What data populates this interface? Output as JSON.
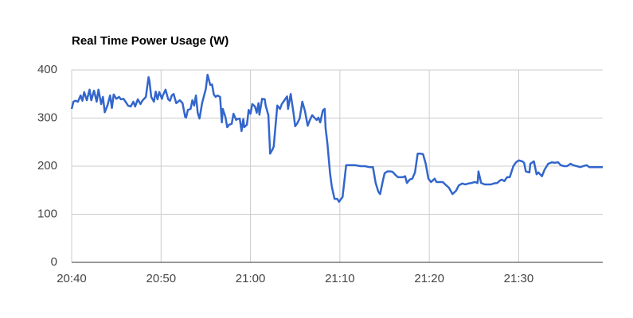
{
  "chart_data": {
    "type": "line",
    "title": "Real Time Power Usage (W)",
    "x": [
      1240,
      1240.2,
      1240.4,
      1240.7,
      1241,
      1241.2,
      1241.4,
      1241.7,
      1242,
      1242.2,
      1242.5,
      1242.8,
      1243,
      1243.3,
      1243.5,
      1243.7,
      1244,
      1244.3,
      1244.5,
      1244.7,
      1245,
      1245.3,
      1245.5,
      1245.8,
      1246.1,
      1246.3,
      1246.6,
      1246.9,
      1247.1,
      1247.4,
      1247.7,
      1247.9,
      1248.3,
      1248.6,
      1248.7,
      1248.9,
      1249.2,
      1249.4,
      1249.6,
      1249.8,
      1250.1,
      1250.2,
      1250.5,
      1250.8,
      1251,
      1251.2,
      1251.4,
      1251.7,
      1251.9,
      1252.1,
      1252.4,
      1252.7,
      1252.8,
      1253,
      1253.3,
      1253.5,
      1253.7,
      1253.9,
      1254.1,
      1254.3,
      1254.6,
      1255,
      1255.2,
      1255.5,
      1255.7,
      1255.9,
      1256.1,
      1256.3,
      1256.6,
      1256.8,
      1256.9,
      1257.2,
      1257.4,
      1257.6,
      1257.9,
      1258.1,
      1258.4,
      1258.5,
      1258.8,
      1259,
      1259.2,
      1259.3,
      1259.6,
      1259.8,
      1260,
      1260.2,
      1260.5,
      1260.7,
      1260.9,
      1261,
      1261.3,
      1261.6,
      1261.7,
      1262,
      1262.2,
      1262.5,
      1262.6,
      1263,
      1263.3,
      1263.5,
      1263.8,
      1264.1,
      1264.2,
      1264.5,
      1264.8,
      1265,
      1265.2,
      1265.5,
      1265.8,
      1266.1,
      1266.4,
      1266.6,
      1266.9,
      1267.1,
      1267.4,
      1267.6,
      1267.8,
      1268.1,
      1268.3,
      1268.4,
      1268.6,
      1268.9,
      1269.1,
      1269.4,
      1269.7,
      1269.9,
      1270.3,
      1270.7,
      1271.2,
      1271.7,
      1272.3,
      1272.8,
      1273.3,
      1273.7,
      1274,
      1274.3,
      1274.5,
      1274.8,
      1275,
      1275.3,
      1275.7,
      1275.9,
      1276.2,
      1276.5,
      1276.7,
      1277,
      1277.3,
      1277.5,
      1277.8,
      1278.1,
      1278.4,
      1278.7,
      1279,
      1279.3,
      1279.6,
      1279.9,
      1280.2,
      1280.6,
      1280.8,
      1281.2,
      1281.5,
      1281.9,
      1282.2,
      1282.6,
      1283,
      1283.3,
      1283.7,
      1284,
      1284.4,
      1284.7,
      1285.1,
      1285.4,
      1285.5,
      1285.8,
      1286.2,
      1286.5,
      1286.9,
      1287.2,
      1287.6,
      1287.9,
      1288.1,
      1288.4,
      1288.7,
      1289,
      1289.4,
      1289.7,
      1290,
      1290.4,
      1290.6,
      1290.8,
      1291.2,
      1291.3,
      1291.7,
      1292,
      1292.2,
      1292.6,
      1292.9,
      1293.3,
      1293.7,
      1294,
      1294.4,
      1294.7,
      1295.1,
      1295.4,
      1295.8,
      1296.1,
      1296.5,
      1296.9,
      1297.2,
      1297.6,
      1297.9,
      1298.3,
      1298.6,
      1299,
      1299.4
    ],
    "series": [
      {
        "color": "#3366cc",
        "values": [
          319,
          334,
          336,
          334,
          347,
          336,
          354,
          337,
          359,
          337,
          357,
          334,
          359,
          329,
          344,
          312,
          326,
          347,
          321,
          349,
          340,
          344,
          339,
          340,
          332,
          326,
          324,
          334,
          324,
          339,
          329,
          336,
          344,
          385,
          377,
          344,
          334,
          355,
          339,
          354,
          340,
          347,
          359,
          339,
          336,
          347,
          350,
          331,
          334,
          337,
          331,
          302,
          301,
          317,
          319,
          337,
          326,
          347,
          311,
          299,
          332,
          360,
          390,
          369,
          370,
          349,
          344,
          347,
          344,
          291,
          319,
          302,
          281,
          286,
          288,
          309,
          296,
          298,
          299,
          273,
          298,
          281,
          286,
          317,
          309,
          329,
          324,
          311,
          331,
          307,
          340,
          339,
          326,
          306,
          226,
          236,
          241,
          326,
          319,
          329,
          337,
          345,
          319,
          350,
          312,
          283,
          288,
          299,
          334,
          314,
          284,
          294,
          306,
          302,
          296,
          301,
          291,
          316,
          319,
          279,
          248,
          185,
          157,
          132,
          132,
          126,
          136,
          202,
          202,
          202,
          200,
          200,
          198,
          198,
          165,
          147,
          142,
          169,
          185,
          189,
          189,
          188,
          182,
          177,
          177,
          177,
          179,
          165,
          172,
          174,
          187,
          226,
          226,
          225,
          205,
          174,
          167,
          174,
          167,
          167,
          167,
          160,
          155,
          142,
          149,
          160,
          164,
          162,
          164,
          165,
          167,
          165,
          189,
          165,
          162,
          162,
          162,
          164,
          165,
          170,
          172,
          169,
          177,
          177,
          200,
          208,
          212,
          210,
          207,
          189,
          187,
          205,
          210,
          183,
          187,
          179,
          193,
          205,
          208,
          207,
          208,
          202,
          200,
          200,
          205,
          202,
          200,
          198,
          200,
          202,
          198,
          198,
          198,
          198,
          198
        ]
      }
    ],
    "xlim": [
      1240,
      1299.4
    ],
    "xticks": [
      {
        "value": 1240,
        "label": "20:40"
      },
      {
        "value": 1250,
        "label": "20:50"
      },
      {
        "value": 1260,
        "label": "21:00"
      },
      {
        "value": 1270,
        "label": "21:10"
      },
      {
        "value": 1280,
        "label": "21:20"
      },
      {
        "value": 1290,
        "label": "21:30"
      }
    ],
    "ylim": [
      0,
      400
    ],
    "yticks": [
      0,
      100,
      200,
      300,
      400
    ],
    "grid": true
  }
}
